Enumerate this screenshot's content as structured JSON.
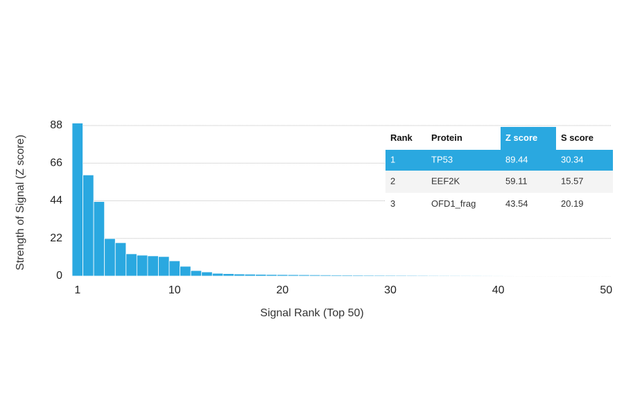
{
  "chart_data": {
    "type": "bar",
    "x_label": "Signal Rank (Top 50)",
    "y_label": "Strength of Signal (Z score)",
    "x": [
      1,
      2,
      3,
      4,
      5,
      6,
      7,
      8,
      9,
      10,
      11,
      12,
      13,
      14,
      15,
      16,
      17,
      18,
      19,
      20,
      21,
      22,
      23,
      24,
      25,
      26,
      27,
      28,
      29,
      30,
      31,
      32,
      33,
      34,
      35,
      36,
      37,
      38,
      39,
      40,
      41,
      42,
      43,
      44,
      45,
      46,
      47,
      48,
      49,
      50
    ],
    "values": [
      89.44,
      59.11,
      43.54,
      21.9,
      19.5,
      13,
      12.2,
      11.8,
      11.4,
      8.9,
      5.7,
      3.2,
      2.4,
      1.6,
      1.4,
      1.2,
      1.1,
      1.0,
      0.9,
      0.85,
      0.8,
      0.75,
      0.7,
      0.65,
      0.6,
      0.58,
      0.55,
      0.52,
      0.5,
      0.48,
      0.46,
      0.44,
      0.42,
      0.4,
      0.39,
      0.38,
      0.37,
      0.36,
      0.35,
      0.34,
      0.33,
      0.32,
      0.31,
      0.3,
      0.29,
      0.28,
      0.27,
      0.26,
      0.25,
      0.24
    ],
    "color": "#2aa8e0",
    "xlim": [
      0.5,
      50.5
    ],
    "xticks": [
      1,
      10,
      20,
      30,
      40,
      50
    ],
    "ylim": [
      0,
      88
    ],
    "yticks": [
      0,
      22,
      44,
      66,
      88
    ],
    "grid": true
  },
  "table": {
    "columns": [
      "Rank",
      "Protein",
      "Z score",
      "S score"
    ],
    "highlight_color": "#2aa8e0",
    "rows": [
      [
        1,
        "TP53",
        89.44,
        30.34
      ],
      [
        2,
        "EEF2K",
        59.11,
        15.57
      ],
      [
        3,
        "OFD1_frag",
        43.54,
        20.19
      ]
    ]
  }
}
